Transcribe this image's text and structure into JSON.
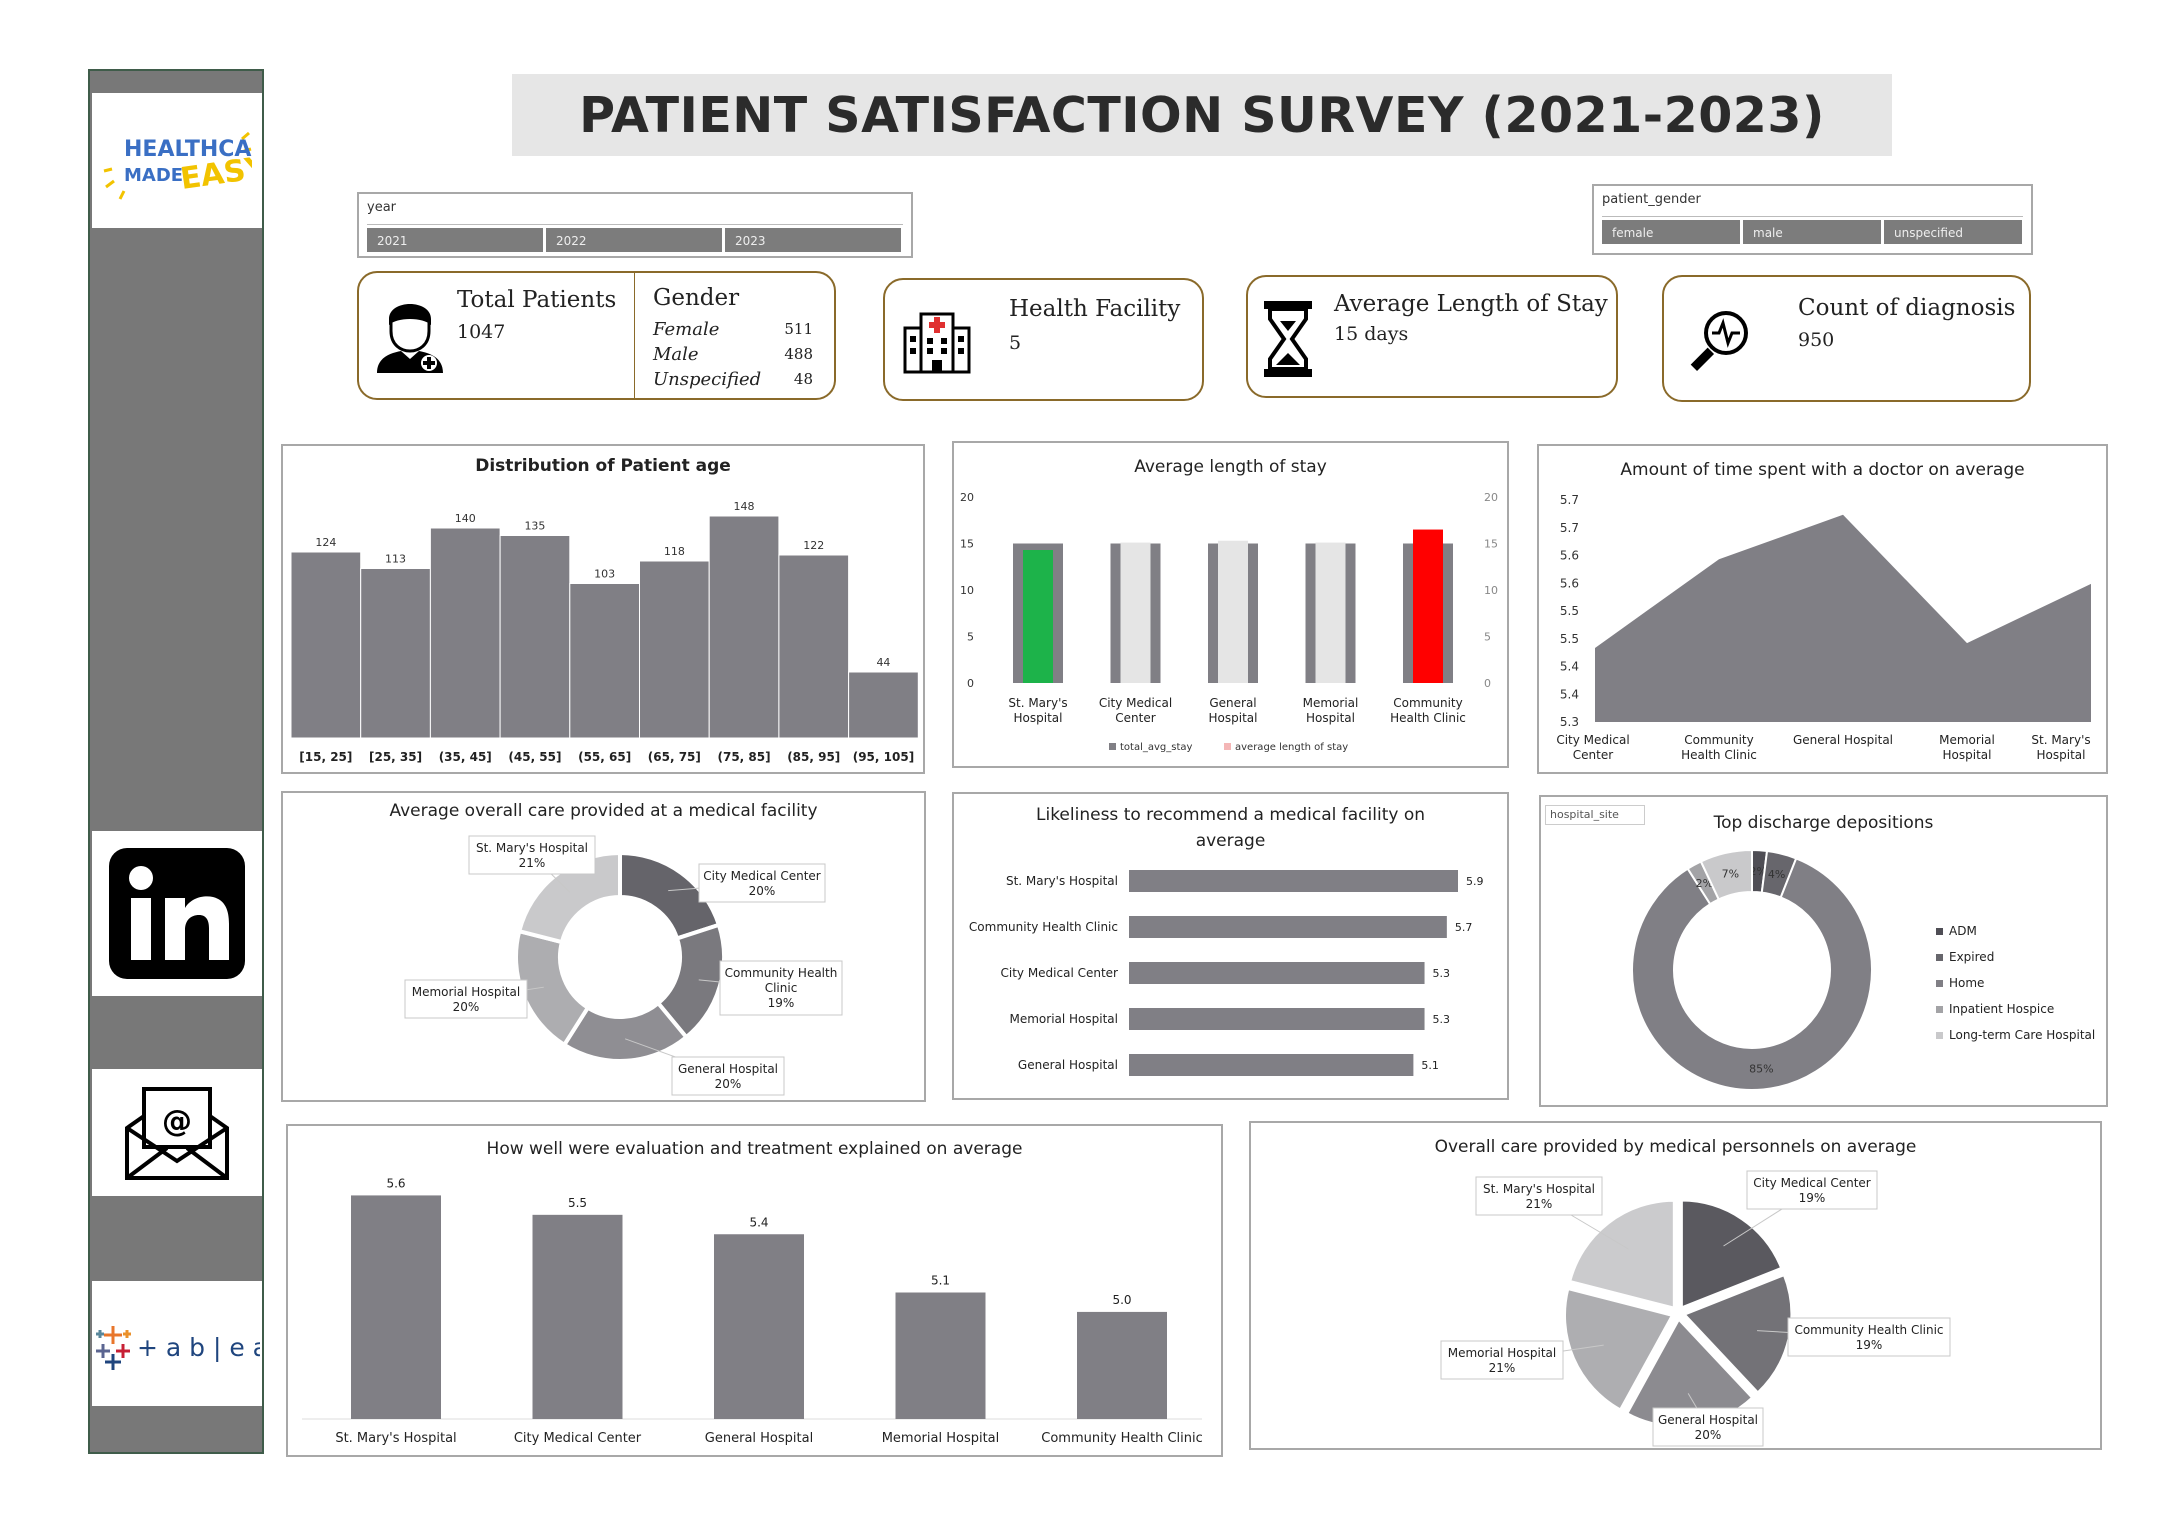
{
  "header": {
    "title": "PATIENT SATISFACTION SURVEY (2021-2023)"
  },
  "sidebar": {
    "logo_line1": "HEALTHCARE",
    "logo_line2": "MADE",
    "logo_line3": "EASY",
    "tableau_label": "+ a b | e a u"
  },
  "filters": {
    "year": {
      "title": "year",
      "options": [
        "2021",
        "2022",
        "2023"
      ]
    },
    "gender": {
      "title": "patient_gender",
      "options": [
        "female",
        "male",
        "unspecified"
      ]
    }
  },
  "kpis": {
    "total_patients": {
      "label": "Total Patients",
      "value": "1047"
    },
    "gender": {
      "label": "Gender",
      "rows": [
        {
          "name": "Female",
          "value": "511"
        },
        {
          "name": "Male",
          "value": "488"
        },
        {
          "name": "Unspecified",
          "value": "48"
        }
      ]
    },
    "health_facility": {
      "label": "Health Facility",
      "value": "5"
    },
    "avg_stay": {
      "label": "Average Length of Stay",
      "value": "15 days"
    },
    "diagnosis": {
      "label": "Count of diagnosis",
      "value": "950"
    }
  },
  "colors": {
    "bar": "#807f85",
    "green": "#1db34a",
    "red": "#ff0000",
    "light": "#e5e5e5",
    "kpi_border": "#8a6a2a"
  },
  "chart_data": [
    {
      "id": "age",
      "type": "bar",
      "title": "Distribution of Patient age",
      "categories": [
        "[15, 25]",
        "[25, 35]",
        "(35, 45]",
        "(45, 55]",
        "(55, 65]",
        "(65, 75]",
        "(75, 85]",
        "(85, 95]",
        "(95, 105]"
      ],
      "values": [
        124,
        113,
        140,
        135,
        103,
        118,
        148,
        122,
        44
      ],
      "ylim": [
        0,
        160
      ]
    },
    {
      "id": "stay",
      "type": "bar",
      "title": "Average length of stay",
      "categories": [
        "St. Mary's\nHospital",
        "City Medical\nCenter",
        "General\nHospital",
        "Memorial\nHospital",
        "Community\nHealth Clinic"
      ],
      "series": [
        {
          "name": "total_avg_stay",
          "values": [
            15,
            15,
            15,
            15,
            15
          ]
        },
        {
          "name": "average length of stay",
          "values": [
            14.3,
            15.1,
            15.3,
            15.1,
            16.5
          ]
        }
      ],
      "overlay_colors": [
        "#1db34a",
        "#e5e5e5",
        "#e5e5e5",
        "#e5e5e5",
        "#ff0000"
      ],
      "yticks": [
        0,
        5,
        10,
        15,
        20
      ],
      "ylim": [
        0,
        20
      ]
    },
    {
      "id": "doctor_time",
      "type": "area",
      "title": "Amount of time spent with a doctor on average",
      "categories": [
        "City Medical\nCenter",
        "Community\nHealth Clinic",
        "General Hospital",
        "Memorial\nHospital",
        "St. Mary's\nHospital"
      ],
      "values": [
        5.45,
        5.63,
        5.72,
        5.46,
        5.58
      ],
      "yticks": [
        "5.3",
        "5.4",
        "5.4",
        "5.5",
        "5.5",
        "5.6",
        "5.6",
        "5.7",
        "5.7"
      ],
      "ylim": [
        5.3,
        5.75
      ]
    },
    {
      "id": "overall_care",
      "type": "pie",
      "title": "Average overall care provided at a medical facility",
      "labels": [
        "City Medical Center",
        "Community Health\nClinic",
        "General Hospital",
        "Memorial Hospital",
        "St. Mary's Hospital"
      ],
      "values": [
        20,
        19,
        20,
        20,
        21
      ],
      "value_labels": [
        "20%",
        "19%",
        "20%",
        "20%",
        "21%"
      ],
      "colors": [
        "#65646a",
        "#7a797e",
        "#8f8e93",
        "#adadb0",
        "#c9c9cb"
      ]
    },
    {
      "id": "recommend",
      "type": "bar",
      "title": "Likeliness to recommend a medical facility on average",
      "categories": [
        "St. Mary's Hospital",
        "Community Health Clinic",
        "City Medical Center",
        "Memorial Hospital",
        "General Hospital"
      ],
      "values": [
        5.9,
        5.7,
        5.3,
        5.3,
        5.1
      ],
      "labels": [
        "5.9",
        "5.7",
        "5.3",
        "5.3",
        "5.1"
      ]
    },
    {
      "id": "discharge",
      "type": "pie",
      "title": "Top discharge depositions",
      "filter_label": "hospital_site",
      "labels": [
        "ADM",
        "Expired",
        "Home",
        "Inpatient Hospice",
        "Long-term Care Hospital"
      ],
      "values": [
        2,
        4,
        85,
        2,
        7
      ],
      "value_labels": [
        "2%",
        "4%",
        "85%",
        "2%",
        "7%"
      ],
      "colors": [
        "#4f4e55",
        "#67666c",
        "#807f85",
        "#a3a3a6",
        "#c9c9cb"
      ]
    },
    {
      "id": "explained",
      "type": "bar",
      "title": "How well were evaluation and treatment explained on average",
      "categories": [
        "St. Mary's Hospital",
        "City Medical Center",
        "General Hospital",
        "Memorial Hospital",
        "Community Health Clinic"
      ],
      "values": [
        5.6,
        5.5,
        5.4,
        5.1,
        5.0
      ],
      "labels": [
        "5.6",
        "5.5",
        "5.4",
        "5.1",
        "5.0"
      ],
      "ylim": [
        4.5,
        5.7
      ]
    },
    {
      "id": "personnel",
      "type": "pie",
      "title": "Overall care provided by medical personnels on average",
      "labels": [
        "City Medical Center",
        "Community Health Clinic",
        "General Hospital",
        "Memorial Hospital",
        "St. Mary's Hospital"
      ],
      "values": [
        19,
        19,
        20,
        21,
        21
      ],
      "value_labels": [
        "19%",
        "19%",
        "20%",
        "21%",
        "21%"
      ],
      "colors": [
        "#5a595f",
        "#737277",
        "#8c8b90",
        "#aeaeb1",
        "#cbcbcd"
      ]
    }
  ]
}
